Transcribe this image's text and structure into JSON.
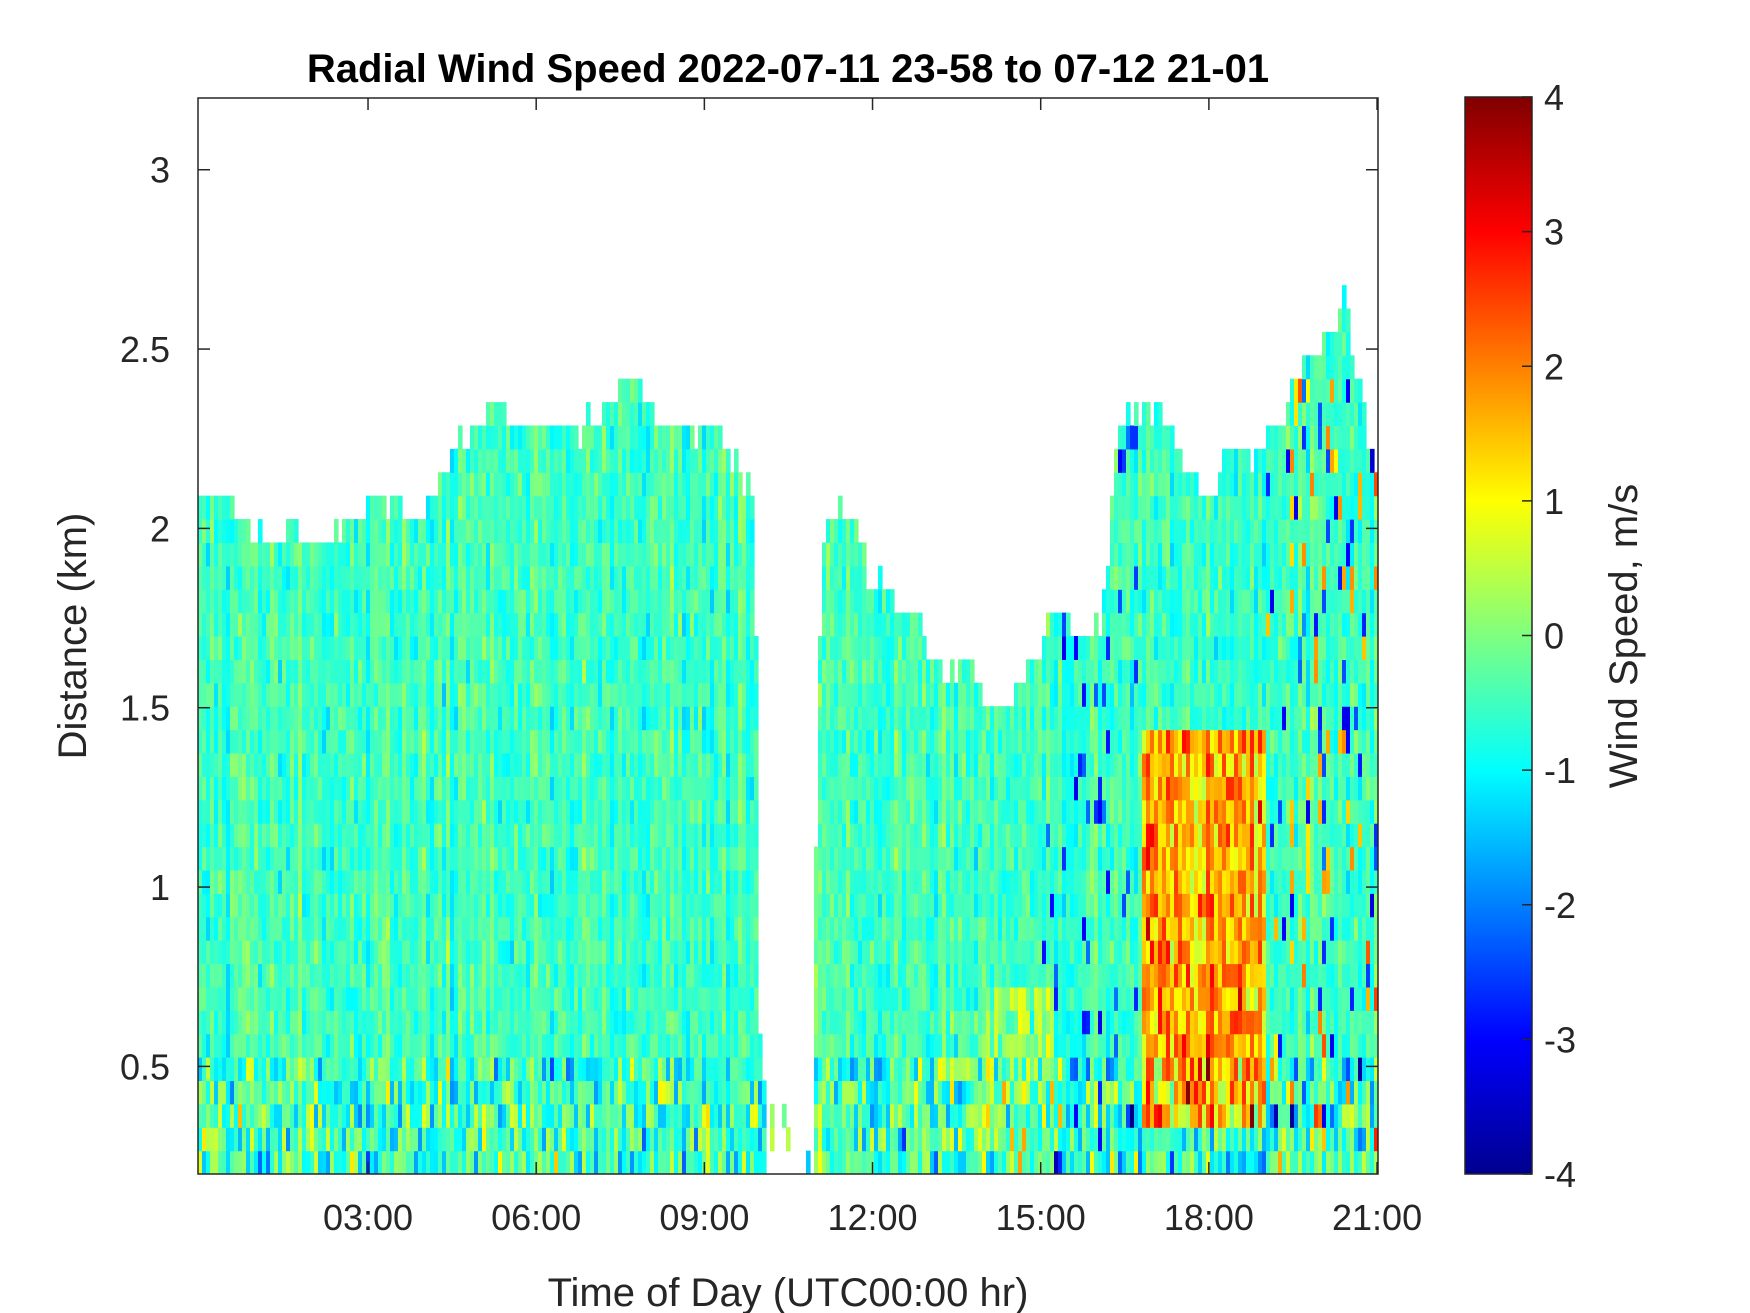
{
  "chart_data": {
    "type": "heatmap",
    "title": "Radial Wind Speed 2022-07-11 23-58 to 07-12 21-01",
    "xlabel": "Time of Day (UTC00:00 hr)",
    "ylabel": "Distance (km)",
    "xlim": [
      -0.033,
      21.017
    ],
    "ylim": [
      0.2,
      3.2
    ],
    "xticks": [
      3,
      6,
      9,
      12,
      15,
      18,
      21
    ],
    "xtick_labels": [
      "03:00",
      "06:00",
      "09:00",
      "12:00",
      "15:00",
      "18:00",
      "21:00"
    ],
    "yticks": [
      0.5,
      1,
      1.5,
      2,
      2.5,
      3
    ],
    "ytick_labels": [
      "0.5",
      "1",
      "1.5",
      "2",
      "2.5",
      "3"
    ],
    "colorbar": {
      "label": "Wind Speed, m/s",
      "clim": [
        -4,
        4
      ],
      "ticks": [
        -4,
        -3,
        -2,
        -1,
        0,
        1,
        2,
        3,
        4
      ],
      "tick_labels": [
        "-4",
        "-3",
        "-2",
        "-1",
        "0",
        "1",
        "2",
        "3",
        "4"
      ],
      "colormap": "jet"
    },
    "data_top_profile": {
      "description_units": "hour vs max distance km with valid data",
      "hour": [
        0,
        0.3,
        0.7,
        1.0,
        1.4,
        1.7,
        2.1,
        2.4,
        2.8,
        3.2,
        3.6,
        4.0,
        4.4,
        4.8,
        5.2,
        5.6,
        6.0,
        6.4,
        6.8,
        7.2,
        7.6,
        7.8,
        8.1,
        8.5,
        8.9,
        9.2,
        9.5,
        9.9,
        10.0,
        10.1,
        10.3,
        10.6,
        10.9,
        11.1,
        11.3,
        11.6,
        11.9,
        12.2,
        12.5,
        12.8,
        13.1,
        13.4,
        13.7,
        14.0,
        14.3,
        14.6,
        14.9,
        15.2,
        15.5,
        15.8,
        16.1,
        16.4,
        16.7,
        17.0,
        17.3,
        17.6,
        18.0,
        18.4,
        18.8,
        19.2,
        19.6,
        20.0,
        20.4,
        20.7,
        21.0
      ],
      "max_km": [
        2.05,
        2.08,
        2.0,
        1.97,
        1.95,
        1.98,
        1.92,
        1.95,
        2.0,
        2.05,
        2.02,
        2.0,
        2.15,
        2.25,
        2.3,
        2.28,
        2.27,
        2.25,
        2.25,
        2.3,
        2.4,
        2.35,
        2.28,
        2.25,
        2.22,
        2.25,
        2.15,
        2.05,
        0.45,
        0.4,
        0.35,
        0.35,
        0.4,
        1.95,
        2.05,
        2.0,
        1.85,
        1.8,
        1.75,
        1.7,
        1.6,
        1.55,
        1.6,
        1.5,
        1.45,
        1.5,
        1.6,
        1.75,
        1.7,
        1.65,
        1.7,
        2.3,
        2.3,
        2.3,
        2.25,
        2.15,
        2.05,
        2.2,
        2.15,
        2.25,
        2.4,
        2.5,
        2.6,
        2.35,
        2.1
      ],
      "gap_hours": [
        10.05,
        10.95
      ]
    },
    "field_summary": {
      "background_m_s": -0.5,
      "strong_positive_region": {
        "hour_range": [
          16.8,
          19.0
        ],
        "km_range": [
          0.3,
          1.4
        ],
        "peak_m_s": 3.8
      },
      "near_surface_variability_km": [
        0.2,
        0.5
      ]
    }
  }
}
